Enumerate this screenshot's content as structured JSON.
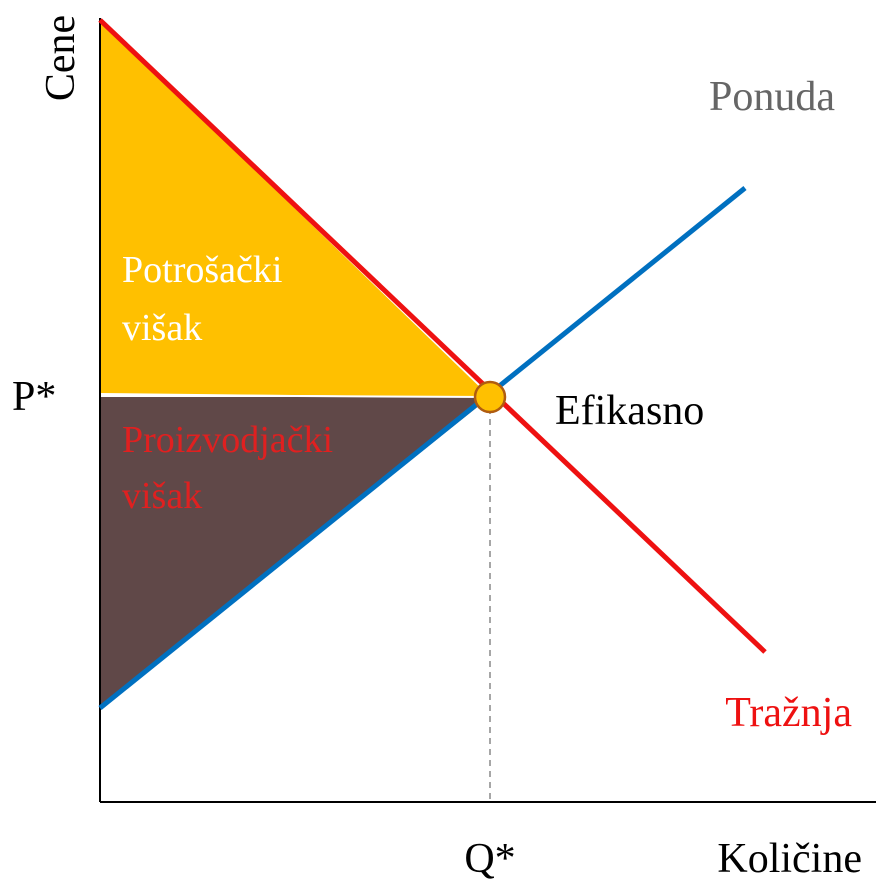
{
  "axes": {
    "y_label": "Cene",
    "x_label": "Količine"
  },
  "curves": {
    "supply": "Ponuda",
    "demand": "Tražnja"
  },
  "areas": {
    "consumer_surplus": [
      "Potrošački",
      "višak"
    ],
    "producer_surplus": [
      "Proizvodjački",
      "višak"
    ]
  },
  "equilibrium": {
    "price": "P*",
    "quantity": "Q*",
    "label": "Efikasno"
  }
}
